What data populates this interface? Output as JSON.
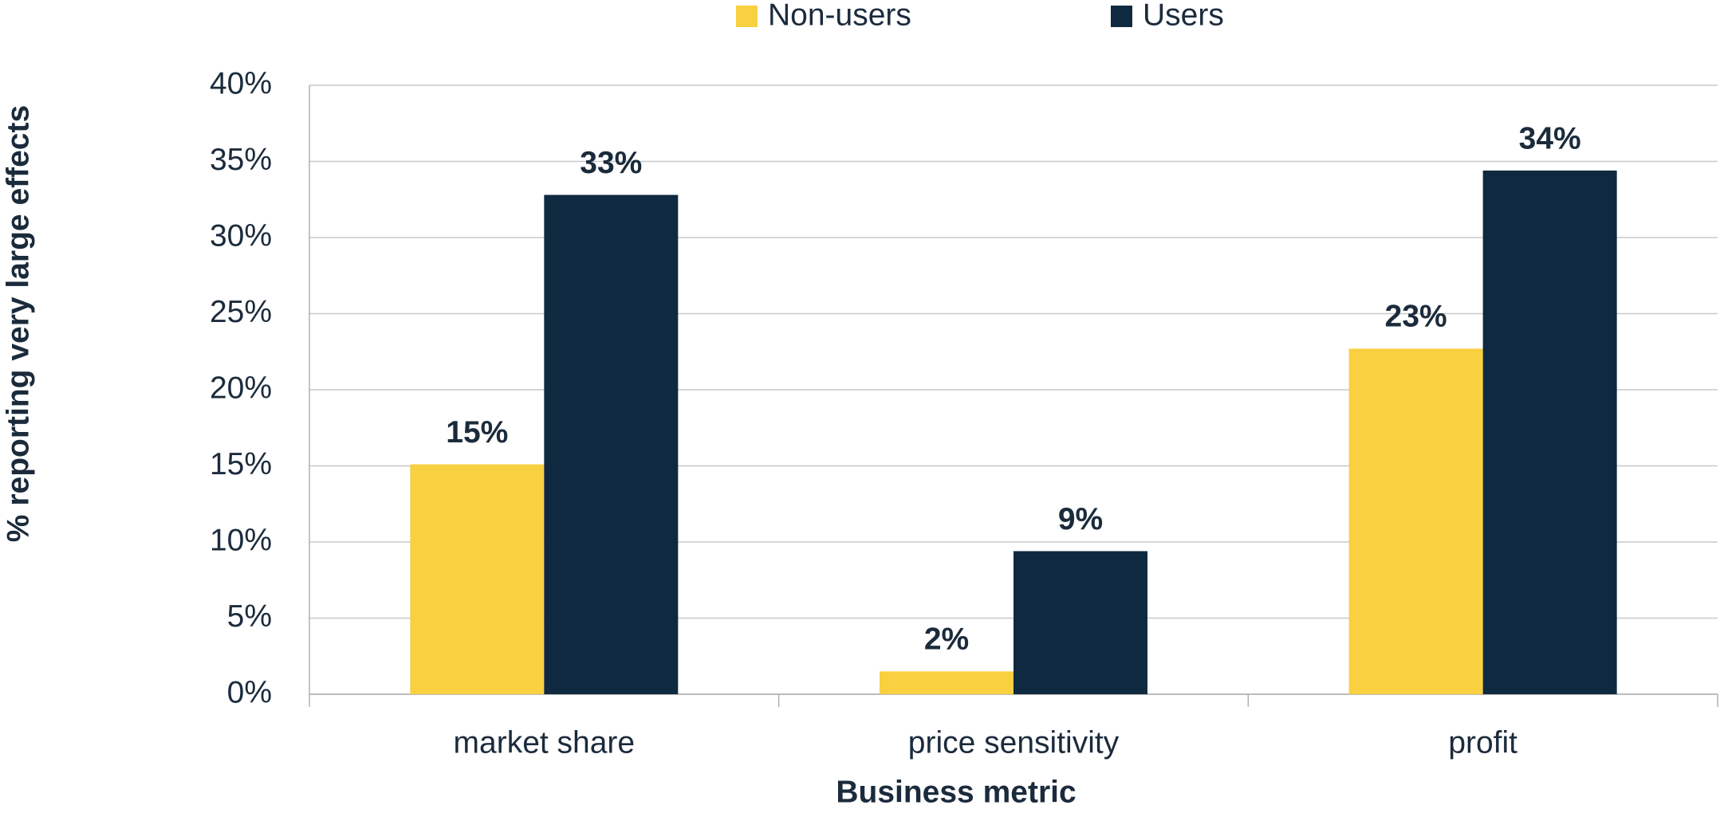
{
  "chart_data": {
    "type": "bar",
    "x_label": "Business metric",
    "y_label": "% reporting very large effects",
    "categories": [
      "market share",
      "price sensitivity",
      "profit"
    ],
    "series": [
      {
        "name": "Non-users",
        "color": "#f9d03f",
        "values": [
          15.1,
          1.5,
          22.7
        ],
        "value_labels": [
          "15%",
          "2%",
          "23%"
        ]
      },
      {
        "name": "Users",
        "color": "#0f2a40",
        "values": [
          32.8,
          9.4,
          34.4
        ],
        "value_labels": [
          "33%",
          "9%",
          "34%"
        ]
      }
    ],
    "ylim": [
      0,
      40
    ],
    "yticks": [
      {
        "value": 0,
        "label": "0%"
      },
      {
        "value": 5,
        "label": "5%"
      },
      {
        "value": 10,
        "label": "10%"
      },
      {
        "value": 15,
        "label": "15%"
      },
      {
        "value": 20,
        "label": "20%"
      },
      {
        "value": 25,
        "label": "25%"
      },
      {
        "value": 30,
        "label": "30%"
      },
      {
        "value": 35,
        "label": "35%"
      },
      {
        "value": 40,
        "label": "40%"
      }
    ],
    "grid": true,
    "legend": "top"
  }
}
